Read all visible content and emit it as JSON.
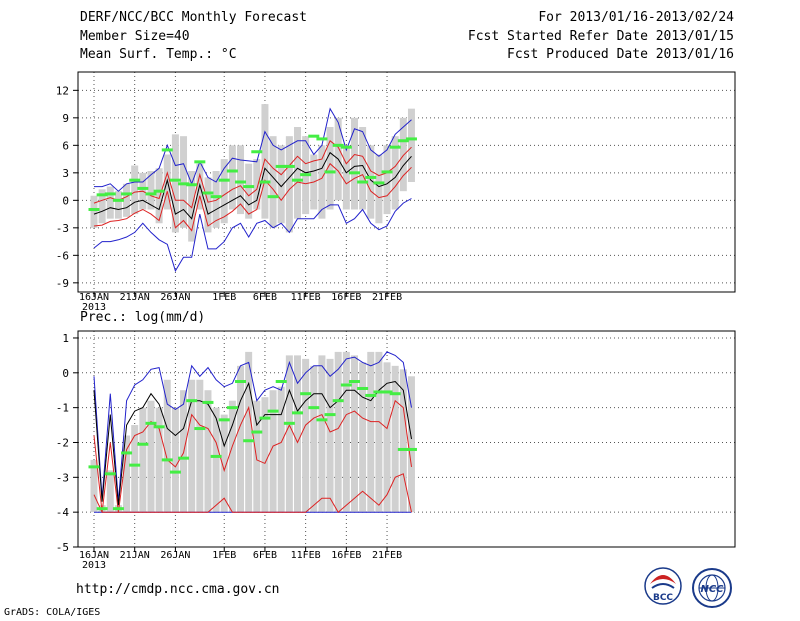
{
  "header": {
    "title": "DERF/NCC/BCC Monthly Forecast",
    "member_size": "Member Size=40",
    "variable": "Mean Surf. Temp.: °C",
    "forecast_period": "For 2013/01/16-2013/02/24",
    "started_refer": "Fcst Started Refer Date 2013/01/15",
    "produced": "Fcst Produced Date 2013/01/16"
  },
  "footer": {
    "url": "http://cmdp.ncc.cma.gov.cn",
    "grads": "GrADS: COLA/IGES",
    "logo_bcc": "BCC",
    "logo_ncc": "NCC"
  },
  "colors": {
    "box": "#d0d0d0",
    "median": "#44ee44",
    "mean": "#000000",
    "middle_band": "#dd2222",
    "outer_band": "#2222cc",
    "grid": "#555555"
  },
  "chart_data": [
    {
      "type": "box",
      "name": "temperature",
      "title": "Mean Surf. Temp.: °C",
      "xlabel": "",
      "ylabel": "",
      "ylim": [
        -10,
        14
      ],
      "yticks": [
        12,
        9,
        6,
        3,
        0,
        -3,
        -6,
        -9
      ],
      "xticks": [
        {
          "day": 0,
          "label": "16JAN",
          "sub": "2013"
        },
        {
          "day": 5,
          "label": "21JAN"
        },
        {
          "day": 10,
          "label": "26JAN"
        },
        {
          "day": 16,
          "label": "1FEB"
        },
        {
          "day": 21,
          "label": "6FEB"
        },
        {
          "day": 26,
          "label": "11FEB"
        },
        {
          "day": 31,
          "label": "16FEB"
        },
        {
          "day": 36,
          "label": "21FEB"
        }
      ],
      "days": [
        0,
        1,
        2,
        3,
        4,
        5,
        6,
        7,
        8,
        9,
        10,
        11,
        12,
        13,
        14,
        15,
        16,
        17,
        18,
        19,
        20,
        21,
        22,
        23,
        24,
        25,
        26,
        27,
        28,
        29,
        30,
        31,
        32,
        33,
        34,
        35,
        36,
        37,
        38,
        39
      ],
      "box_low": [
        -3,
        -2.5,
        -2,
        -2,
        -1.8,
        -1.5,
        -1,
        -1,
        -2.5,
        -1,
        -3.5,
        -3,
        -4.5,
        -1,
        -3.5,
        -3,
        -2.5,
        -1,
        -1.5,
        -2,
        -1,
        -2,
        -3,
        -2.5,
        -3.5,
        -2,
        -1.5,
        -1,
        -2,
        -1,
        0,
        -1,
        -1,
        -1,
        -2,
        -2.5,
        -1.5,
        -1,
        1,
        2
      ],
      "box_high": [
        0.5,
        1.2,
        1.5,
        1,
        1.8,
        3.8,
        3,
        3.2,
        3.5,
        5,
        7.2,
        7,
        3.2,
        4,
        2.5,
        3.2,
        4.5,
        6,
        6,
        4,
        4.5,
        10.5,
        7,
        6,
        7,
        8,
        7,
        5,
        6,
        8,
        9,
        6,
        9,
        8,
        6,
        5,
        6,
        7,
        9,
        10
      ],
      "median": [
        -1,
        0.6,
        0.7,
        0,
        0.7,
        2.2,
        1.3,
        0.7,
        1,
        5.5,
        2.2,
        1.8,
        1.7,
        4.2,
        0.8,
        0.4,
        2.2,
        3.2,
        2,
        1.5,
        5.3,
        2,
        0.4,
        3.7,
        3.7,
        2.2,
        2.8,
        7,
        6.7,
        3.1,
        6,
        5.8,
        3,
        2,
        2.5,
        1.9,
        3.1,
        5.8,
        6.5,
        6.7
      ],
      "mean": [
        -1.5,
        -1.2,
        -0.8,
        -1,
        -0.8,
        -0.2,
        0,
        -0.5,
        -1,
        2.2,
        -1.5,
        -1,
        -2,
        1.7,
        -1.5,
        -1,
        -0.5,
        0,
        0.5,
        -0.5,
        0,
        3.5,
        2.5,
        1.5,
        2.5,
        3.5,
        3,
        3.2,
        3.5,
        5.2,
        4.5,
        3,
        3.7,
        3.8,
        2.2,
        1.5,
        1.8,
        2.5,
        3.8,
        4.8
      ],
      "red_upper": [
        -0.3,
        0,
        0.3,
        0,
        0.4,
        0.9,
        1,
        0.5,
        0.2,
        3,
        0,
        0,
        -0.8,
        2.8,
        -0.2,
        0,
        0.6,
        1.2,
        1.6,
        0.5,
        1.2,
        4.5,
        3.5,
        2.8,
        3.8,
        4.8,
        4,
        4.3,
        4.5,
        6.5,
        5.8,
        4,
        5,
        4.8,
        3.2,
        2.7,
        3,
        3.7,
        4.9,
        5.8
      ],
      "red_lower": [
        -2.8,
        -2.7,
        -2.3,
        -2.2,
        -2,
        -1.4,
        -1,
        -1.5,
        -2.2,
        1,
        -3,
        -2.2,
        -3.3,
        0.5,
        -2.8,
        -2.2,
        -1.8,
        -1.2,
        -0.4,
        -1.5,
        -1,
        2.2,
        1.2,
        0,
        1.2,
        2,
        1.8,
        2,
        2.4,
        4,
        3.2,
        1.8,
        2.4,
        2.8,
        1,
        0.3,
        0.5,
        1.5,
        2.7,
        3.6
      ],
      "blue_upper": [
        1.5,
        1.5,
        1.8,
        1,
        1.8,
        2,
        2,
        2.8,
        3.5,
        6,
        3.8,
        4,
        1.8,
        4.2,
        2.5,
        2,
        3.5,
        4.6,
        4.4,
        4.3,
        4.2,
        7.5,
        6,
        5.5,
        6,
        6.5,
        6.5,
        5,
        6,
        10,
        8.5,
        5.5,
        7.8,
        7.5,
        5.5,
        4.8,
        5.5,
        7.2,
        8,
        8.8
      ],
      "blue_lower": [
        -5.2,
        -4.5,
        -4.5,
        -4.3,
        -4,
        -3.5,
        -2.5,
        -3.5,
        -4.3,
        -4.8,
        -7.7,
        -6.2,
        -6.2,
        -1.5,
        -5.3,
        -5.3,
        -4.5,
        -3,
        -2.5,
        -4,
        -2.5,
        -2.2,
        -3,
        -2.5,
        -3.5,
        -2,
        -2,
        -2,
        -1,
        -0.5,
        -0.5,
        -2.5,
        -2,
        -1,
        -2.5,
        -3.2,
        -2.8,
        -1.2,
        -0.3,
        0.2
      ]
    },
    {
      "type": "box",
      "name": "precipitation",
      "title": "Prec.: log(mm/d)",
      "xlabel": "",
      "ylabel": "",
      "ylim": [
        -5,
        1.2
      ],
      "yticks": [
        1,
        0,
        -1,
        -2,
        -3,
        -4,
        -5
      ],
      "xticks": [
        {
          "day": 0,
          "label": "16JAN",
          "sub": "2013"
        },
        {
          "day": 5,
          "label": "21JAN"
        },
        {
          "day": 10,
          "label": "26JAN"
        },
        {
          "day": 16,
          "label": "1FEB"
        },
        {
          "day": 21,
          "label": "6FEB"
        },
        {
          "day": 26,
          "label": "11FEB"
        },
        {
          "day": 31,
          "label": "16FEB"
        },
        {
          "day": 36,
          "label": "21FEB"
        }
      ],
      "days": [
        0,
        1,
        2,
        3,
        4,
        5,
        6,
        7,
        8,
        9,
        10,
        11,
        12,
        13,
        14,
        15,
        16,
        17,
        18,
        19,
        20,
        21,
        22,
        23,
        24,
        25,
        26,
        27,
        28,
        29,
        30,
        31,
        32,
        33,
        34,
        35,
        36,
        37,
        38,
        39
      ],
      "box_low": [
        -4,
        -4,
        -4,
        -4,
        -4,
        -4,
        -4,
        -4,
        -4,
        -4,
        -4,
        -4,
        -4,
        -4,
        -4,
        -4,
        -4,
        -4,
        -4,
        -4,
        -4,
        -4,
        -4,
        -4,
        -4,
        -4,
        -4,
        -4,
        -4,
        -4,
        -4,
        -4,
        -4,
        -4,
        -4,
        -4,
        -4,
        -4,
        -4,
        -4
      ],
      "box_high": [
        -2.5,
        -3.8,
        -2.8,
        -3.8,
        -1.8,
        -1.5,
        -1,
        -0.8,
        -1,
        -0.2,
        -1,
        -0.5,
        -0.2,
        -0.2,
        -0.5,
        -1,
        -1.2,
        -0.8,
        0.2,
        0.6,
        -0.8,
        -0.7,
        -0.5,
        -0.4,
        0.5,
        0.5,
        0.4,
        0.2,
        0.5,
        0.4,
        0.6,
        0.6,
        0.5,
        0.3,
        0.6,
        0.6,
        0.3,
        0.2,
        0.1,
        -0.1
      ],
      "median": [
        -2.7,
        -3.9,
        -2.9,
        -3.9,
        -2.3,
        -2.65,
        -2.05,
        -1.45,
        -1.55,
        -2.5,
        -2.85,
        -2.45,
        -0.8,
        -1.6,
        -0.85,
        -2.4,
        -1.35,
        -1,
        -0.25,
        -1.95,
        -1.7,
        -1.3,
        -1.1,
        -0.25,
        -1.45,
        -1.15,
        -0.6,
        -1,
        -1.35,
        -1.2,
        -0.8,
        -0.35,
        -0.25,
        -0.45,
        -0.65,
        -0.55,
        -0.55,
        -0.6,
        -2.2,
        -2.2
      ],
      "mean": [
        -0.5,
        -3.7,
        -1.2,
        -3.8,
        -1.5,
        -1.1,
        -1,
        -0.6,
        -0.9,
        -1.6,
        -1.8,
        -1.6,
        -0.8,
        -0.8,
        -0.9,
        -1.3,
        -2.1,
        -1.5,
        -0.8,
        -0.3,
        -1.5,
        -1.2,
        -1.2,
        -1.2,
        -0.5,
        -1.1,
        -0.8,
        -0.6,
        -0.6,
        -1,
        -0.8,
        -0.5,
        -0.5,
        -0.7,
        -0.8,
        -0.5,
        -0.3,
        -0.25,
        -0.5,
        -1.9
      ],
      "red_upper": [
        -1.8,
        -4,
        -2,
        -4,
        -2.2,
        -1.8,
        -1.7,
        -1.4,
        -1.6,
        -2.5,
        -2.7,
        -2.3,
        -1.2,
        -1.5,
        -1.6,
        -2,
        -2.8,
        -2.1,
        -1.5,
        -1,
        -2.5,
        -2.6,
        -2.1,
        -2,
        -1.5,
        -2,
        -1.5,
        -1.3,
        -1.2,
        -1.7,
        -1.6,
        -1.2,
        -1.1,
        -1.3,
        -1.4,
        -1.4,
        -1.6,
        -0.8,
        -1,
        -2.7
      ],
      "red_lower": [
        -3.5,
        -4,
        -4,
        -4,
        -4,
        -4,
        -4,
        -4,
        -4,
        -4,
        -4,
        -4,
        -4,
        -4,
        -4,
        -3.8,
        -3.6,
        -4,
        -4,
        -4,
        -4,
        -4,
        -4,
        -4,
        -4,
        -4,
        -4,
        -3.8,
        -3.6,
        -3.6,
        -4,
        -3.8,
        -3.6,
        -3.4,
        -3.6,
        -3.8,
        -3.5,
        -3,
        -2.9,
        -4
      ],
      "blue_upper": [
        -0.1,
        -3.6,
        -0.6,
        -3.7,
        -0.8,
        -0.35,
        -0.2,
        0.1,
        0.15,
        -0.9,
        -1.05,
        -0.9,
        0.2,
        -0.1,
        0.15,
        -0.2,
        -0.4,
        -0.3,
        0.2,
        0.3,
        -0.8,
        -0.5,
        -0.4,
        -0.5,
        0.3,
        -0.3,
        0,
        0.2,
        0.2,
        -0.1,
        0.1,
        0.4,
        0.45,
        0.3,
        0.2,
        0.3,
        0.6,
        0.5,
        0.3,
        -1
      ],
      "blue_lower": [
        -4,
        -4,
        -4,
        -4,
        -4,
        -4,
        -4,
        -4,
        -4,
        -4,
        -4,
        -4,
        -4,
        -4,
        -4,
        -4,
        -4,
        -4,
        -4,
        -4,
        -4,
        -4,
        -4,
        -4,
        -4,
        -4,
        -4,
        -4,
        -4,
        -4,
        -4,
        -4,
        -4,
        -4,
        -4,
        -4,
        -4,
        -4,
        -4,
        -4
      ]
    }
  ]
}
